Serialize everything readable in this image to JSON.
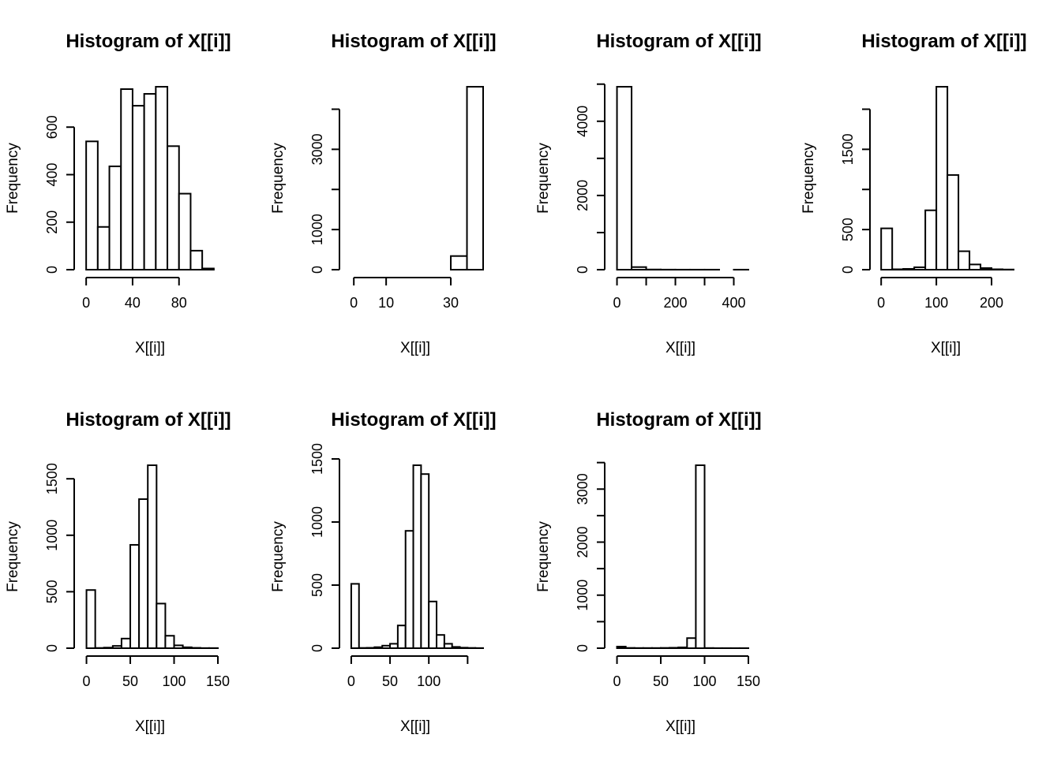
{
  "chart_data": [
    {
      "type": "bar",
      "title": "Histogram of X[[i]]",
      "xlabel": "X[[i]]",
      "ylabel": "Frequency",
      "bin_edges": [
        0,
        10,
        20,
        30,
        40,
        50,
        60,
        70,
        80,
        90,
        100,
        110
      ],
      "values": [
        540,
        180,
        435,
        760,
        690,
        740,
        770,
        520,
        320,
        80,
        5
      ],
      "xticks": [
        0,
        40,
        80
      ],
      "xlim": [
        -3.5,
        113.5
      ],
      "yticks": [
        0,
        200,
        400,
        600
      ],
      "ylim": [
        0,
        770
      ]
    },
    {
      "type": "bar",
      "title": "Histogram of X[[i]]",
      "xlabel": "X[[i]]",
      "ylabel": "Frequency",
      "bin_edges": [
        0,
        5,
        10,
        15,
        20,
        25,
        30,
        35,
        40
      ],
      "values": [
        0,
        0,
        0,
        0,
        0,
        0,
        340,
        4560
      ],
      "xticks": [
        0,
        10,
        30
      ],
      "xlim": [
        -2,
        40
      ],
      "yticks": [
        0,
        1000,
        3000
      ],
      "minor_yticks": [
        2000,
        4000
      ],
      "ylim": [
        0,
        4560
      ]
    },
    {
      "type": "bar",
      "title": "Histogram of X[[i]]",
      "xlabel": "X[[i]]",
      "ylabel": "Frequency",
      "bin_edges": [
        0,
        50,
        100,
        150,
        200,
        250,
        300,
        350,
        400,
        450
      ],
      "values": [
        4930,
        70,
        5,
        2,
        1,
        1,
        1,
        0,
        1
      ],
      "xticks": [
        0,
        200,
        400
      ],
      "minor_xticks": [
        100,
        300
      ],
      "xlim": [
        -15,
        450
      ],
      "yticks": [
        0,
        2000,
        4000
      ],
      "minor_yticks": [
        1000,
        3000,
        5000
      ],
      "ylim": [
        0,
        4930
      ]
    },
    {
      "type": "bar",
      "title": "Histogram of X[[i]]",
      "xlabel": "X[[i]]",
      "ylabel": "Frequency",
      "bin_edges": [
        0,
        20,
        40,
        60,
        80,
        100,
        120,
        140,
        160,
        180,
        200,
        220,
        240
      ],
      "values": [
        515,
        5,
        10,
        30,
        740,
        2280,
        1180,
        230,
        65,
        20,
        5,
        2
      ],
      "xticks": [
        0,
        100,
        200
      ],
      "xlim": [
        -6,
        240
      ],
      "yticks": [
        0,
        500,
        1500
      ],
      "minor_yticks": [
        1000,
        2000
      ],
      "ylim": [
        0,
        2280
      ]
    },
    {
      "type": "bar",
      "title": "Histogram of X[[i]]",
      "xlabel": "X[[i]]",
      "ylabel": "Frequency",
      "bin_edges": [
        0,
        10,
        20,
        30,
        40,
        50,
        60,
        70,
        80,
        90,
        100,
        110,
        120,
        130,
        140,
        150
      ],
      "values": [
        515,
        2,
        5,
        20,
        85,
        915,
        1320,
        1620,
        395,
        110,
        25,
        8,
        3,
        1,
        1
      ],
      "xticks": [
        0,
        50,
        100,
        150
      ],
      "xlim": [
        -5,
        150
      ],
      "yticks": [
        0,
        500,
        1000,
        1500
      ],
      "ylim": [
        0,
        1620
      ]
    },
    {
      "type": "bar",
      "title": "Histogram of X[[i]]",
      "xlabel": "X[[i]]",
      "ylabel": "Frequency",
      "bin_edges": [
        0,
        10,
        20,
        30,
        40,
        50,
        60,
        70,
        80,
        90,
        100,
        110,
        120,
        130,
        140,
        150,
        160,
        170
      ],
      "values": [
        510,
        2,
        3,
        8,
        20,
        35,
        180,
        930,
        1450,
        1380,
        370,
        105,
        35,
        10,
        4,
        2,
        1
      ],
      "xticks": [
        0,
        50,
        100
      ],
      "minor_xticks": [
        150
      ],
      "xlim": [
        -5,
        170
      ],
      "yticks": [
        0,
        500,
        1000,
        1500
      ],
      "ylim": [
        0,
        1450
      ]
    },
    {
      "type": "bar",
      "title": "Histogram of X[[i]]",
      "xlabel": "X[[i]]",
      "ylabel": "Frequency",
      "bin_edges": [
        0,
        10,
        20,
        30,
        40,
        50,
        60,
        70,
        80,
        90,
        100,
        110,
        120,
        130,
        140,
        150
      ],
      "values": [
        30,
        5,
        3,
        3,
        3,
        5,
        8,
        15,
        190,
        3450,
        3,
        1,
        1,
        1,
        1
      ],
      "xticks": [
        0,
        50,
        100,
        150
      ],
      "xlim": [
        -5,
        150
      ],
      "yticks": [
        0,
        1000,
        2000,
        3000
      ],
      "minor_yticks": [
        500,
        1500,
        2500,
        3500
      ],
      "ylim": [
        0,
        3450
      ]
    }
  ]
}
